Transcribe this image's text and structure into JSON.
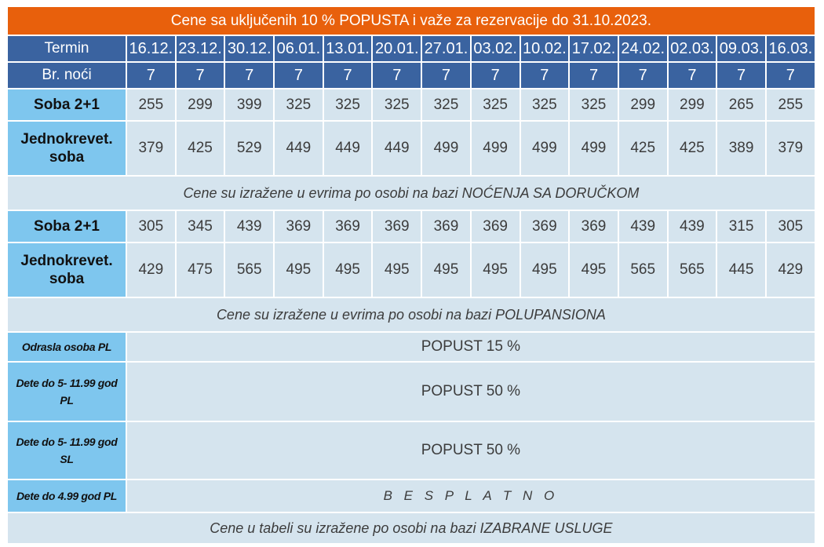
{
  "title": "Cene sa uključenih 10 % POPUSTA i važe za rezervacije do 31.10.2023.",
  "termin_label": "Termin",
  "dates": [
    "16.12.",
    "23.12.",
    "30.12.",
    "06.01.",
    "13.01.",
    "20.01.",
    "27.01.",
    "03.02.",
    "10.02.",
    "17.02.",
    "24.02.",
    "02.03.",
    "09.03.",
    "16.03."
  ],
  "nights_label": "Br. noći",
  "nights": [
    "7",
    "7",
    "7",
    "7",
    "7",
    "7",
    "7",
    "7",
    "7",
    "7",
    "7",
    "7",
    "7",
    "7"
  ],
  "breakfast": {
    "room21_label": "Soba 2+1",
    "room21": [
      "255",
      "299",
      "399",
      "325",
      "325",
      "325",
      "325",
      "325",
      "325",
      "325",
      "299",
      "299",
      "265",
      "255"
    ],
    "single_label_1": "Jednokrevet.",
    "single_label_2": "soba",
    "single": [
      "379",
      "425",
      "529",
      "449",
      "449",
      "449",
      "499",
      "499",
      "499",
      "499",
      "425",
      "425",
      "389",
      "379"
    ],
    "note": "Cene su izražene u evrima po osobi na bazi NOĆENJA SA DORUČKOM"
  },
  "halfboard": {
    "room21_label": "Soba 2+1",
    "room21": [
      "305",
      "345",
      "439",
      "369",
      "369",
      "369",
      "369",
      "369",
      "369",
      "369",
      "439",
      "439",
      "315",
      "305"
    ],
    "single_label_1": "Jednokrevet.",
    "single_label_2": "soba",
    "single": [
      "429",
      "475",
      "565",
      "495",
      "495",
      "495",
      "495",
      "495",
      "495",
      "495",
      "565",
      "565",
      "445",
      "429"
    ],
    "note": "Cene su izražene u evrima po osobi na bazi POLUPANSIONA"
  },
  "discounts": [
    {
      "label_1": "Odrasla osoba PL",
      "label_2": "",
      "value": "POPUST 15 %"
    },
    {
      "label_1": "Dete do 5- 11.99 god",
      "label_2": "PL",
      "value": "POPUST 50 %"
    },
    {
      "label_1": "Dete do 5- 11.99 god",
      "label_2": "SL",
      "value": "POPUST 50 %"
    },
    {
      "label_1": "Dete do 4.99 god PL",
      "label_2": "",
      "value": "B E S P L A T N O"
    }
  ],
  "footer_note": "Cene u tabeli su izražene po osobi na bazi IZABRANE USLUGE",
  "colors": {
    "title_bg": "#e8600c",
    "header_bg": "#3a63a0",
    "label_bg": "#7ec6ee",
    "cell_bg": "#d5e4ee"
  }
}
